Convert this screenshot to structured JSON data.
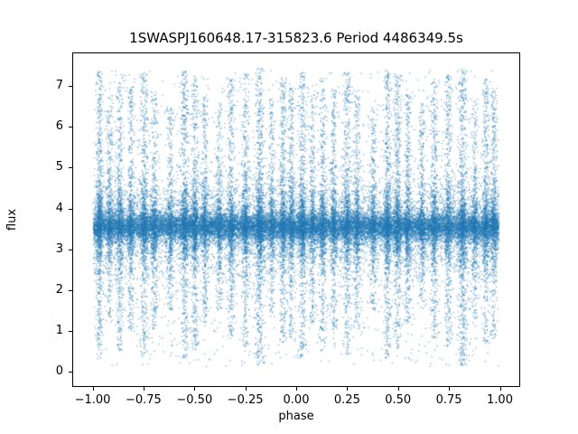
{
  "chart_data": {
    "type": "scatter",
    "title": "1SWASPJ160648.17-315823.6 Period 4486349.5s",
    "xlabel": "phase",
    "ylabel": "flux",
    "xlim": [
      -1.1,
      1.1
    ],
    "ylim": [
      -0.37,
      7.82
    ],
    "xticks": [
      -1.0,
      -0.75,
      -0.5,
      -0.25,
      0.0,
      0.25,
      0.5,
      0.75,
      1.0
    ],
    "xtick_labels": [
      "−1.00",
      "−0.75",
      "−0.50",
      "−0.25",
      "0.00",
      "0.25",
      "0.50",
      "0.75",
      "1.00"
    ],
    "yticks": [
      0,
      1,
      2,
      3,
      4,
      5,
      6,
      7
    ],
    "ytick_labels": [
      "0",
      "1",
      "2",
      "3",
      "4",
      "5",
      "6",
      "7"
    ],
    "grid": false,
    "legend": "none",
    "marker_color": "#1f77b4",
    "marker_alpha": 0.5,
    "marker_size_px": 1.4,
    "seed": 1606483158,
    "description": "Phase-folded SuperWASP light curve plotted over phase -1 to 1; dense baseline flux band near 3.55 with vertical noise streaks at repeating phases reaching flux ~0 to ~7.45",
    "generator": {
      "baseline_core": {
        "n": 16000,
        "phase_min": -1.0,
        "phase_max": 1.0,
        "flux_mean": 3.55,
        "flux_sigma": 0.17
      },
      "baseline_mid": {
        "n": 5200,
        "phase_min": -1.0,
        "phase_max": 1.0,
        "flux_mean": 3.55,
        "flux_sigma": 0.65
      },
      "baseline_wide": {
        "n": 1500,
        "phase_min": -1.0,
        "phase_max": 1.0,
        "flux_lo": 0.1,
        "flux_hi": 7.4
      },
      "bands": [
        {
          "p": 0.03,
          "w": 0.009,
          "n": 900,
          "lo": 0.3,
          "hi": 7.4
        },
        {
          "p": 0.08,
          "w": 0.008,
          "n": 500,
          "lo": 1.2,
          "hi": 6.8
        },
        {
          "p": 0.13,
          "w": 0.009,
          "n": 700,
          "lo": 0.5,
          "hi": 7.3
        },
        {
          "p": 0.185,
          "w": 0.008,
          "n": 600,
          "lo": 1.0,
          "hi": 7.0
        },
        {
          "p": 0.25,
          "w": 0.01,
          "n": 800,
          "lo": 0.4,
          "hi": 7.35
        },
        {
          "p": 0.3,
          "w": 0.008,
          "n": 600,
          "lo": 1.0,
          "hi": 6.9
        },
        {
          "p": 0.38,
          "w": 0.008,
          "n": 500,
          "lo": 1.5,
          "hi": 6.5
        },
        {
          "p": 0.45,
          "w": 0.009,
          "n": 900,
          "lo": 0.3,
          "hi": 7.4
        },
        {
          "p": 0.5,
          "w": 0.009,
          "n": 800,
          "lo": 0.5,
          "hi": 7.3
        },
        {
          "p": 0.55,
          "w": 0.008,
          "n": 600,
          "lo": 1.2,
          "hi": 6.8
        },
        {
          "p": 0.62,
          "w": 0.008,
          "n": 500,
          "lo": 1.5,
          "hi": 6.6
        },
        {
          "p": 0.68,
          "w": 0.009,
          "n": 700,
          "lo": 0.8,
          "hi": 7.2
        },
        {
          "p": 0.75,
          "w": 0.009,
          "n": 700,
          "lo": 0.6,
          "hi": 7.3
        },
        {
          "p": 0.82,
          "w": 0.011,
          "n": 1100,
          "lo": 0.15,
          "hi": 7.45
        },
        {
          "p": 0.88,
          "w": 0.008,
          "n": 500,
          "lo": 1.3,
          "hi": 6.7
        },
        {
          "p": 0.935,
          "w": 0.009,
          "n": 700,
          "lo": 0.7,
          "hi": 7.2
        },
        {
          "p": 0.975,
          "w": 0.008,
          "n": 600,
          "lo": 0.8,
          "hi": 7.0
        }
      ]
    }
  }
}
